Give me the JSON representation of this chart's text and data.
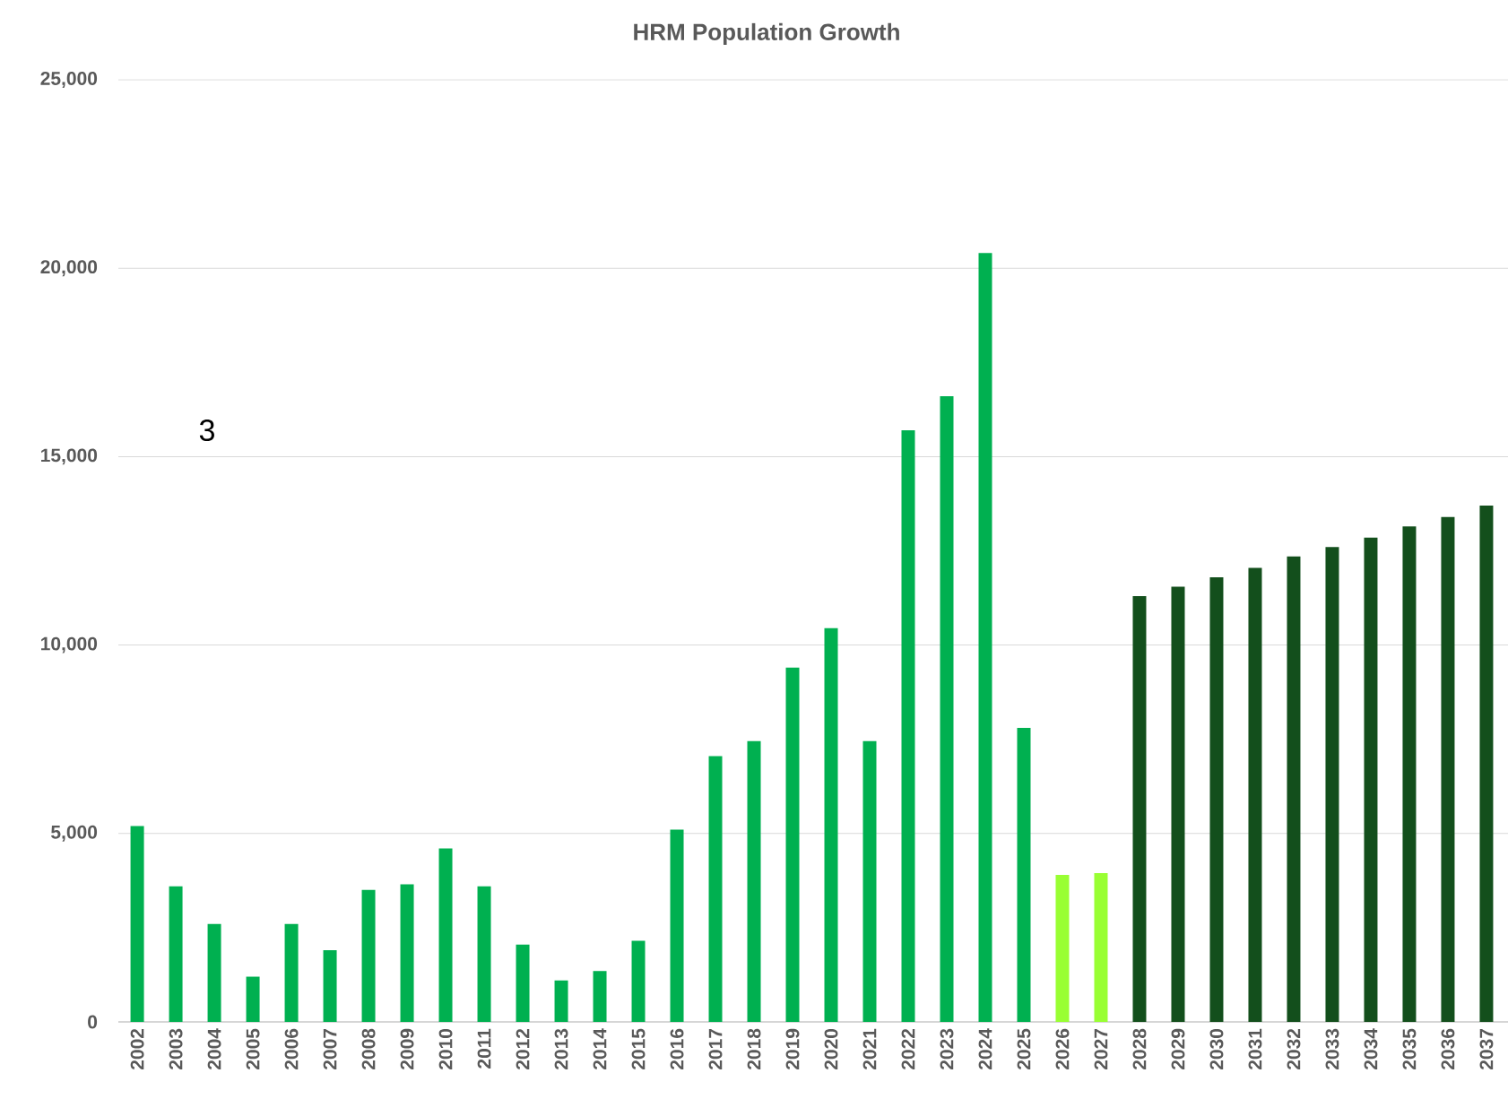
{
  "chart_data": {
    "type": "bar",
    "title": "HRM Population Growth",
    "categories": [
      "2002",
      "2003",
      "2004",
      "2005",
      "2006",
      "2007",
      "2008",
      "2009",
      "2010",
      "2011",
      "2012",
      "2013",
      "2014",
      "2015",
      "2016",
      "2017",
      "2018",
      "2019",
      "2020",
      "2021",
      "2022",
      "2023",
      "2024",
      "2025",
      "2026",
      "2027",
      "2028",
      "2029",
      "2030",
      "2031",
      "2032",
      "2033",
      "2034",
      "2035",
      "2036",
      "2037"
    ],
    "values": [
      5200,
      3600,
      2600,
      1200,
      2600,
      1900,
      3500,
      3650,
      4600,
      3600,
      2050,
      1100,
      1350,
      2150,
      5100,
      7050,
      7450,
      9400,
      10450,
      7450,
      15700,
      16600,
      20400,
      7800,
      3900,
      3950,
      11300,
      11550,
      11800,
      12050,
      12350,
      12600,
      12850,
      13150,
      13400,
      13700
    ],
    "colors": [
      "#00b050",
      "#00b050",
      "#00b050",
      "#00b050",
      "#00b050",
      "#00b050",
      "#00b050",
      "#00b050",
      "#00b050",
      "#00b050",
      "#00b050",
      "#00b050",
      "#00b050",
      "#00b050",
      "#00b050",
      "#00b050",
      "#00b050",
      "#00b050",
      "#00b050",
      "#00b050",
      "#00b050",
      "#00b050",
      "#00b050",
      "#00b050",
      "#99ff33",
      "#99ff33",
      "#134f1c",
      "#134f1c",
      "#134f1c",
      "#134f1c",
      "#134f1c",
      "#134f1c",
      "#134f1c",
      "#134f1c",
      "#134f1c",
      "#134f1c"
    ],
    "ylim": [
      0,
      25000
    ],
    "yticks": [
      0,
      {
        "value": 5000,
        "label": "5,000"
      },
      {
        "value": 10000,
        "label": "10,000"
      },
      {
        "value": 15000,
        "label": "15,000"
      },
      {
        "value": 20000,
        "label": "20,000"
      },
      {
        "value": 25000,
        "label": "25,000"
      }
    ],
    "grid": "y",
    "annotations": [
      "3"
    ]
  }
}
